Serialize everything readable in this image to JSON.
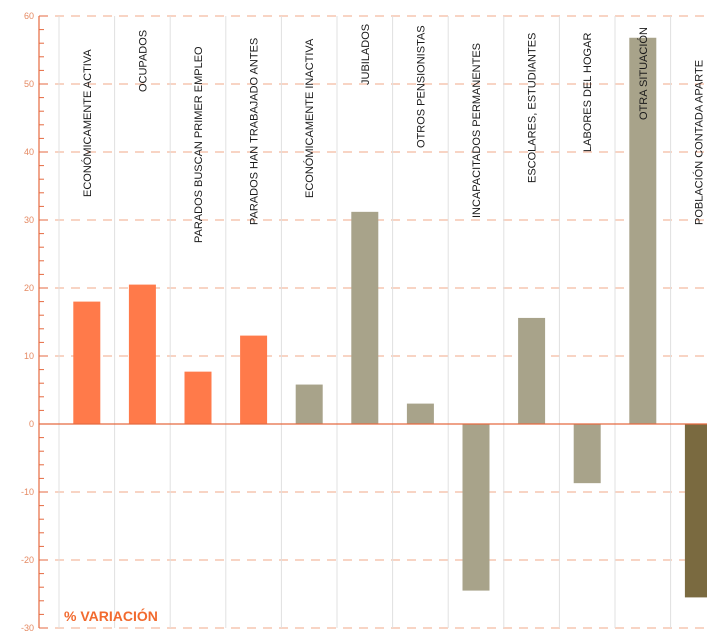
{
  "colors": {
    "active_bar": "#ff7a4a",
    "inactive_bar": "#a8a38a",
    "apart_bar": "#7a6a40",
    "axis": "#e56a40",
    "grid": "#f2a88a",
    "tick_text": "#e58a63"
  },
  "chart_data": {
    "type": "bar",
    "title": "",
    "xlabel": "",
    "ylabel": "% VARIACIÓN",
    "ylim": [
      -30,
      60
    ],
    "yticks": [
      60,
      50,
      40,
      30,
      20,
      10,
      0,
      -10,
      -20,
      -30
    ],
    "grid": true,
    "categories": [
      "ECONÓMICAMENTE ACTIVA",
      "OCUPADOS",
      "PARADOS BUSCAN PRIMER EMPLEO",
      "PARADOS HAN TRABAJADO ANTES",
      "ECONÓMICAMENTE INACTIVA",
      "JUBILADOS",
      "OTROS PENSIONISTAS",
      "INCAPACITADOS PERMANENTES",
      "ESCOLARES, ESTUDIANTES",
      "LABORES DEL HOGAR",
      "OTRA SITUACIÓN",
      "POBLACIÓN CONTADA APARTE"
    ],
    "values": [
      18,
      20.5,
      7.7,
      13,
      5.8,
      31.2,
      3,
      -24.5,
      15.6,
      -8.7,
      56.8,
      -25.5
    ],
    "groups": [
      "active",
      "active",
      "active",
      "active",
      "inactive",
      "inactive",
      "inactive",
      "inactive",
      "inactive",
      "inactive",
      "inactive",
      "apart"
    ]
  }
}
